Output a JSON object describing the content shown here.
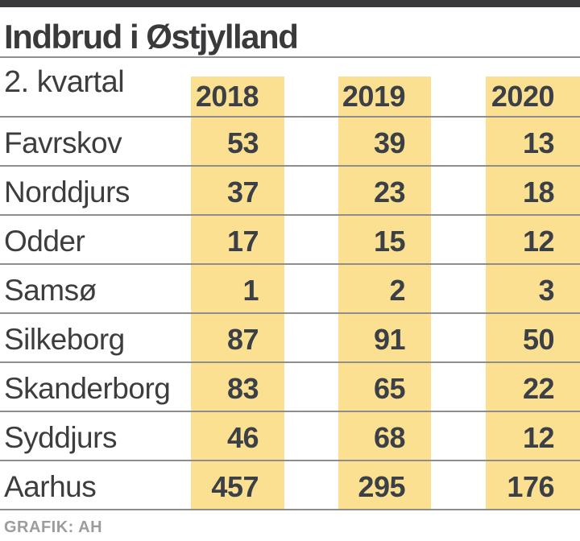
{
  "header": {
    "title": "Indbrud i Østjylland"
  },
  "table": {
    "period_label": "2. kvartal",
    "years": [
      "2018",
      "2019",
      "2020"
    ],
    "rows": [
      {
        "name": "Favrskov",
        "values": [
          53,
          39,
          13
        ]
      },
      {
        "name": "Norddjurs",
        "values": [
          37,
          23,
          18
        ]
      },
      {
        "name": "Odder",
        "values": [
          17,
          15,
          12
        ]
      },
      {
        "name": "Samsø",
        "values": [
          1,
          2,
          3
        ]
      },
      {
        "name": "Silkeborg",
        "values": [
          87,
          91,
          50
        ]
      },
      {
        "name": "Skanderborg",
        "values": [
          83,
          65,
          22
        ]
      },
      {
        "name": "Syddjurs",
        "values": [
          46,
          68,
          12
        ]
      },
      {
        "name": "Aarhus",
        "values": [
          457,
          295,
          176
        ]
      }
    ]
  },
  "footer": {
    "credit": "GRAFIK: AH"
  },
  "colors": {
    "accent_yellow": "#FBE092",
    "dark_text": "#3B3F46",
    "label_text": "#3D3D3D",
    "rule_gray": "#8D8D8D",
    "topbar": "#3A3A3C",
    "credit_gray": "#9C9C9C"
  },
  "chart_data": {
    "type": "table",
    "title": "Indbrud i Østjylland",
    "subtitle": "2. kvartal",
    "categories": [
      "Favrskov",
      "Norddjurs",
      "Odder",
      "Samsø",
      "Silkeborg",
      "Skanderborg",
      "Syddjurs",
      "Aarhus"
    ],
    "series": [
      {
        "name": "2018",
        "values": [
          53,
          37,
          17,
          1,
          87,
          83,
          46,
          457
        ]
      },
      {
        "name": "2019",
        "values": [
          39,
          23,
          15,
          2,
          91,
          65,
          68,
          295
        ]
      },
      {
        "name": "2020",
        "values": [
          13,
          18,
          12,
          3,
          50,
          22,
          12,
          176
        ]
      }
    ],
    "legend_position": "top",
    "grid": "horizontal-rules",
    "source": "GRAFIK: AH"
  }
}
